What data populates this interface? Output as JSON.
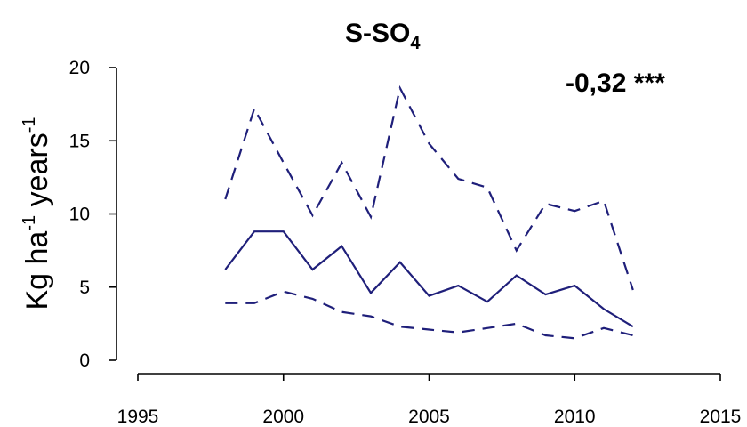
{
  "chart_data": {
    "type": "line",
    "title_main": "S-SO",
    "title_sub": "4",
    "ylabel_main": "Kg ha",
    "ylabel_sup1": "-1",
    "ylabel_mid": " years",
    "ylabel_sup2": "-1",
    "annotation": "-0,32 ***",
    "xlim": [
      1995,
      2015
    ],
    "ylim": [
      0,
      20
    ],
    "xticks": [
      1995,
      2000,
      2005,
      2010,
      2015
    ],
    "yticks": [
      0,
      5,
      10,
      15,
      20
    ],
    "grid": false,
    "legend": "none",
    "color": "#1f1f7a",
    "x": [
      1998,
      1999,
      2000,
      2001,
      2002,
      2003,
      2004,
      2005,
      2006,
      2007,
      2008,
      2009,
      2010,
      2011,
      2012
    ],
    "series": [
      {
        "style": "dashed",
        "values": [
          11.0,
          17.2,
          13.5,
          9.9,
          13.5,
          9.8,
          18.6,
          14.8,
          12.4,
          11.8,
          7.5,
          10.7,
          10.2,
          10.9,
          4.8
        ]
      },
      {
        "style": "solid",
        "values": [
          6.2,
          8.8,
          8.8,
          6.2,
          7.8,
          4.6,
          6.7,
          4.4,
          5.1,
          4.0,
          5.8,
          4.5,
          5.1,
          3.5,
          2.3
        ]
      },
      {
        "style": "dashed",
        "values": [
          3.9,
          3.9,
          4.7,
          4.2,
          3.3,
          3.0,
          2.3,
          2.1,
          1.9,
          2.2,
          2.5,
          1.7,
          1.5,
          2.2,
          1.7
        ]
      }
    ]
  }
}
